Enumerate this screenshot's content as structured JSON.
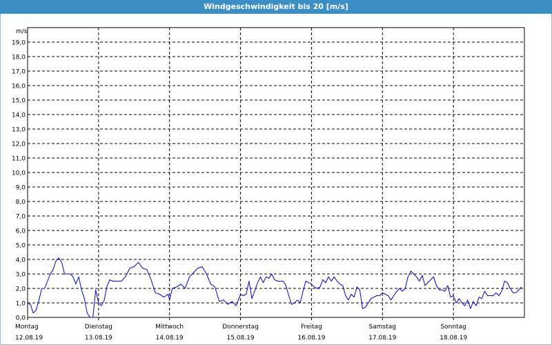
{
  "window": {
    "title": "Windgeschwindigkeit bis 20 [m/s]"
  },
  "colors": {
    "title_bar": "#3b8fc4",
    "line": "#0000c8",
    "grid": "#000000",
    "frame": "#000000"
  },
  "chart_data": {
    "type": "line",
    "title": "Windgeschwindigkeit bis 20 [m/s]",
    "ylabel": "m/s",
    "xlabel": "",
    "ylim": [
      0,
      20
    ],
    "xlim": [
      0,
      7
    ],
    "grid": true,
    "y_ticks": [
      "0,0",
      "1,0",
      "2,0",
      "3,0",
      "4,0",
      "5,0",
      "6,0",
      "7,0",
      "8,0",
      "9,0",
      "10,0",
      "11,0",
      "12,0",
      "13,0",
      "14,0",
      "15,0",
      "16,0",
      "17,0",
      "18,0",
      "19,0"
    ],
    "day_labels": [
      {
        "day": "Montag",
        "date": "12.08.19"
      },
      {
        "day": "Dienstag",
        "date": "13.08.19"
      },
      {
        "day": "Mittwoch",
        "date": "14.08.19"
      },
      {
        "day": "Donnerstag",
        "date": "15.08.19"
      },
      {
        "day": "Freitag",
        "date": "16.08.19"
      },
      {
        "day": "Samstag",
        "date": "17.08.19"
      },
      {
        "day": "Sonntag",
        "date": "18.08.19"
      }
    ],
    "series": [
      {
        "x": [
          0,
          0.04,
          0.08,
          0.12,
          0.16,
          0.2,
          0.24,
          0.28,
          0.32,
          0.36,
          0.4,
          0.44,
          0.48,
          0.52,
          0.56,
          0.6,
          0.64,
          0.68,
          0.72,
          0.76,
          0.8,
          0.84,
          0.88,
          0.92,
          0.96,
          1,
          1.04,
          1.08,
          1.12,
          1.16,
          1.2,
          1.26,
          1.32,
          1.38,
          1.44,
          1.5,
          1.56,
          1.62,
          1.68,
          1.74,
          1.8,
          1.86,
          1.92,
          1.98,
          2,
          2.04,
          2.1,
          2.16,
          2.22,
          2.28,
          2.34,
          2.4,
          2.46,
          2.52,
          2.58,
          2.64,
          2.7,
          2.76,
          2.82,
          2.88,
          2.94,
          3,
          3.04,
          3.08,
          3.12,
          3.16,
          3.2,
          3.24,
          3.28,
          3.32,
          3.36,
          3.4,
          3.44,
          3.48,
          3.52,
          3.56,
          3.6,
          3.64,
          3.68,
          3.72,
          3.76,
          3.8,
          3.84,
          3.88,
          3.92,
          3.96,
          4,
          4.04,
          4.08,
          4.12,
          4.16,
          4.2,
          4.24,
          4.28,
          4.32,
          4.36,
          4.4,
          4.44,
          4.48,
          4.52,
          4.56,
          4.6,
          4.64,
          4.68,
          4.72,
          4.76,
          4.8,
          4.84,
          4.88,
          4.92,
          4.96,
          5,
          5.04,
          5.08,
          5.12,
          5.16,
          5.2,
          5.24,
          5.28,
          5.32,
          5.36,
          5.4,
          5.44,
          5.48,
          5.52,
          5.56,
          5.6,
          5.64,
          5.68,
          5.72,
          5.76,
          5.8,
          5.84,
          5.88,
          5.92,
          5.96,
          6,
          6.04,
          6.08,
          6.12,
          6.16,
          6.2,
          6.24,
          6.28,
          6.32,
          6.36,
          6.4,
          6.44,
          6.48,
          6.52,
          6.56,
          6.6,
          6.64,
          6.68,
          6.72,
          6.76,
          6.8,
          6.84,
          6.88,
          6.92,
          6.96
        ],
        "values": [
          1.0,
          0.9,
          0.3,
          0.5,
          1.2,
          2.0,
          2.0,
          2.5,
          3.0,
          3.3,
          3.9,
          4.1,
          3.8,
          3.0,
          3.0,
          3.0,
          2.8,
          2.3,
          2.8,
          1.9,
          1.3,
          0.3,
          0.0,
          0.0,
          1.9,
          1.0,
          0.8,
          1.2,
          2.2,
          2.6,
          2.5,
          2.5,
          2.5,
          2.8,
          3.4,
          3.5,
          3.8,
          3.4,
          3.3,
          2.6,
          1.7,
          1.6,
          1.4,
          1.6,
          1.2,
          2.0,
          2.1,
          2.3,
          2.0,
          2.8,
          3.1,
          3.4,
          3.5,
          3.0,
          2.3,
          2.1,
          1.1,
          1.2,
          0.9,
          1.1,
          0.8,
          1.6,
          1.5,
          1.6,
          2.5,
          1.3,
          1.8,
          2.4,
          2.8,
          2.4,
          2.8,
          2.7,
          3.0,
          2.6,
          2.5,
          2.5,
          2.5,
          2.2,
          1.5,
          0.9,
          1.0,
          1.2,
          1.0,
          1.8,
          2.5,
          2.4,
          2.3,
          2.1,
          2.0,
          2.1,
          2.6,
          2.4,
          2.8,
          2.5,
          2.8,
          2.5,
          2.3,
          2.2,
          1.5,
          1.2,
          1.6,
          1.4,
          2.1,
          1.9,
          0.6,
          0.7,
          1.0,
          1.3,
          1.4,
          1.5,
          1.5,
          1.7,
          1.6,
          1.5,
          1.2,
          1.5,
          1.8,
          2.0,
          1.8,
          2.0,
          2.8,
          3.2,
          3.0,
          2.8,
          2.5,
          2.9,
          2.2,
          2.4,
          2.6,
          2.8,
          2.2,
          1.9,
          1.9,
          1.8,
          2.2,
          1.4,
          1.5,
          1.0,
          1.3,
          1.0,
          0.8,
          1.2,
          0.6,
          1.1,
          0.8,
          1.4,
          1.3,
          1.8,
          1.5,
          1.5,
          1.5,
          1.7,
          1.5,
          1.8,
          2.5,
          2.4,
          2.0,
          1.7,
          1.7,
          1.9,
          2.1
        ]
      }
    ]
  }
}
